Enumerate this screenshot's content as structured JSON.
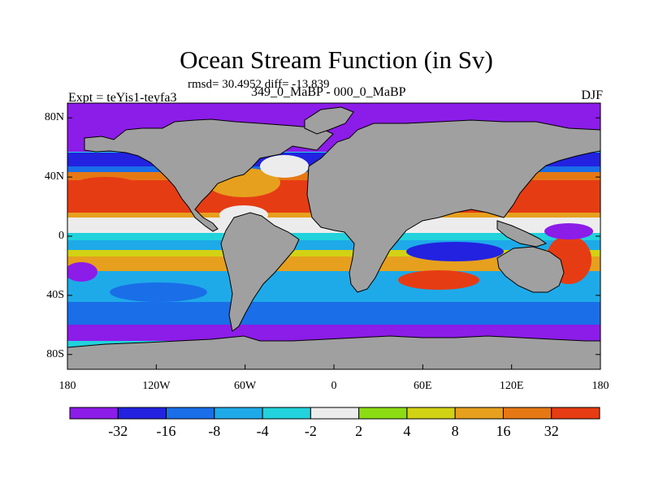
{
  "title": "Ocean Stream Function (in Sv)",
  "stats": "rmsd= 30.4952 diff= -13.839",
  "expt_label": "Expt = teYis1-teyfa3",
  "period_label": "349_0_MaBP - 000_0_MaBP",
  "season_label": "DJF",
  "map": {
    "lon_range": [
      -180,
      180
    ],
    "lat_range": [
      -90,
      90
    ],
    "land_color": "#a0a0a0",
    "y_ticks": [
      "80N",
      "40N",
      "0",
      "40S",
      "80S"
    ],
    "x_ticks": [
      "180",
      "120W",
      "60W",
      "0",
      "60E",
      "120E",
      "180"
    ]
  },
  "colorbar": {
    "colors": [
      "#8c1ce8",
      "#2222e0",
      "#1a6ee8",
      "#1eaae8",
      "#22d2dc",
      "#ececec",
      "#8cdc14",
      "#d2d214",
      "#e6a01e",
      "#e67814",
      "#e63c14"
    ],
    "labels": [
      "-32",
      "-16",
      "-8",
      "-4",
      "-2",
      "2",
      "4",
      "8",
      "16",
      "32"
    ]
  }
}
